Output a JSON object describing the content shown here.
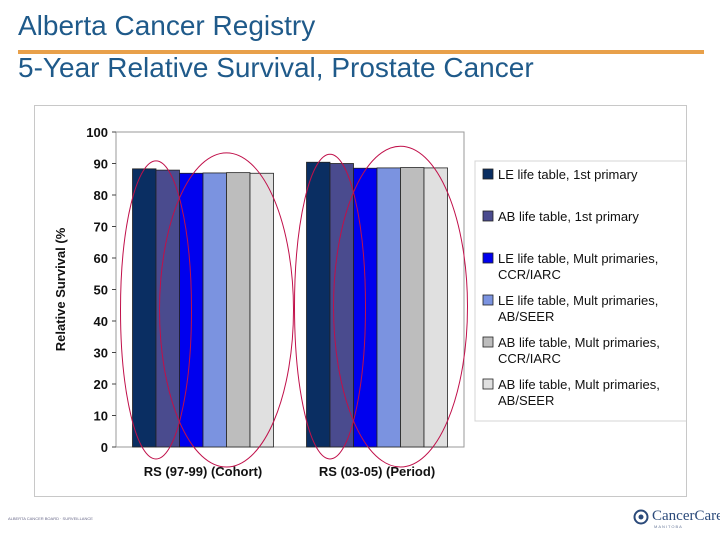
{
  "slide": {
    "title_line1": "Alberta Cancer Registry",
    "title_line2": "5-Year Relative Survival, Prostate Cancer"
  },
  "footer": {
    "left_text": "ALBERTA CANCER BOARD · SURVEILLANCE",
    "logo_text": "CancerCare",
    "logo_sub": "MANITOBA"
  },
  "chart_data": {
    "type": "bar",
    "title": "",
    "xlabel": "",
    "ylabel": "Relative Survival (%",
    "ylim": [
      0,
      100
    ],
    "yticks": [
      0,
      10,
      20,
      30,
      40,
      50,
      60,
      70,
      80,
      90,
      100
    ],
    "grid": false,
    "legend_position": "right",
    "categories": [
      "RS (97-99) (Cohort)",
      "RS (03-05) (Period)"
    ],
    "series": [
      {
        "name": "LE life table, 1st primary",
        "lines": [
          "LE life table, 1st primary"
        ],
        "color": "#0a2e62",
        "values": [
          88.3,
          90.4
        ]
      },
      {
        "name": "AB life table, 1st primary",
        "lines": [
          "AB life table, 1st primary"
        ],
        "color": "#4a4b8e",
        "values": [
          87.9,
          90.0
        ]
      },
      {
        "name": "LE life table, Mult primaries, CCR/IARC",
        "lines": [
          "LE life table, Mult primaries,",
          "CCR/IARC"
        ],
        "color": "#0000ee",
        "values": [
          86.9,
          88.5
        ]
      },
      {
        "name": "LE life table, Mult primaries, AB/SEER",
        "lines": [
          "LE life table, Mult primaries,",
          "AB/SEER"
        ],
        "color": "#7b93e0",
        "values": [
          87.0,
          88.6
        ]
      },
      {
        "name": "AB life table, Mult primaries, CCR/IARC",
        "lines": [
          "AB life table, Mult primaries,",
          "CCR/IARC"
        ],
        "color": "#bdbdbd",
        "values": [
          87.1,
          88.7
        ]
      },
      {
        "name": "AB life table, Mult primaries, AB/SEER",
        "lines": [
          "AB life table, Mult primaries,",
          "AB/SEER"
        ],
        "color": "#e0e0e0",
        "values": [
          86.9,
          88.6
        ]
      }
    ],
    "annotation_color": "#c0104a"
  }
}
